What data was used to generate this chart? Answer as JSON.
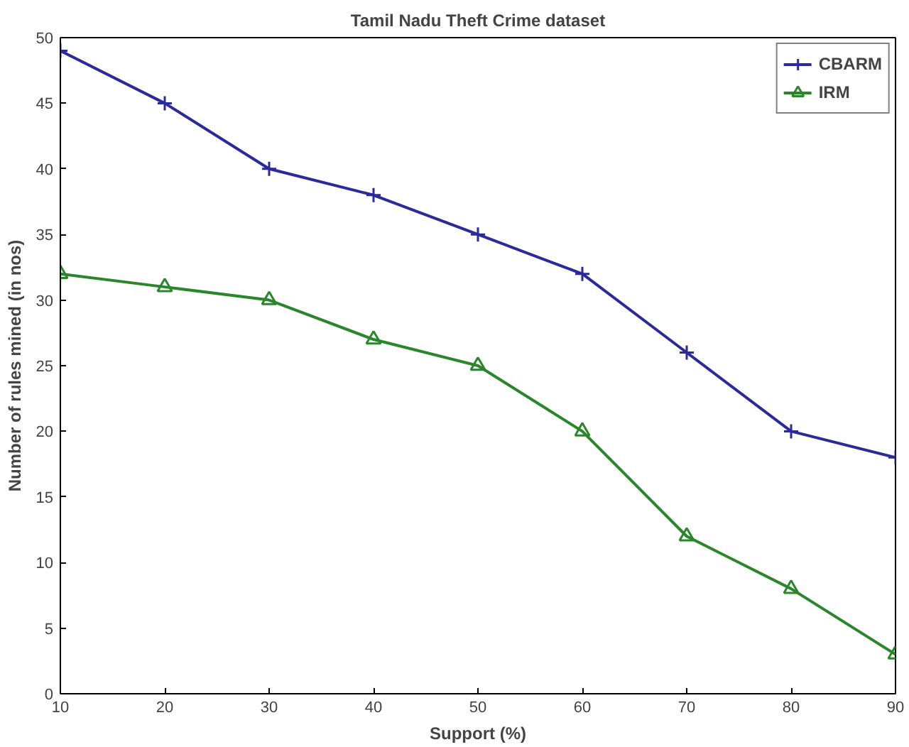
{
  "chart_data": {
    "type": "line",
    "title": "Tamil Nadu Theft Crime dataset",
    "xlabel": "Support (%)",
    "ylabel": "Number of rules mined (in nos)",
    "x": [
      10,
      20,
      30,
      40,
      50,
      60,
      70,
      80,
      90
    ],
    "series": [
      {
        "name": "CBARM",
        "color": "#2a2a9c",
        "marker": "cross",
        "values": [
          49,
          45,
          40,
          38,
          35,
          32,
          26,
          20,
          18
        ]
      },
      {
        "name": "IRM",
        "color": "#2a862a",
        "marker": "triangle",
        "values": [
          32,
          31,
          30,
          27,
          25,
          20,
          12,
          8,
          3
        ]
      }
    ],
    "xlim": [
      10,
      90
    ],
    "ylim": [
      0,
      50
    ],
    "xticks": [
      10,
      20,
      30,
      40,
      50,
      60,
      70,
      80,
      90
    ],
    "yticks": [
      0,
      5,
      10,
      15,
      20,
      25,
      30,
      35,
      40,
      45,
      50
    ],
    "grid": false,
    "legend": "top right",
    "line_style": "solid"
  }
}
